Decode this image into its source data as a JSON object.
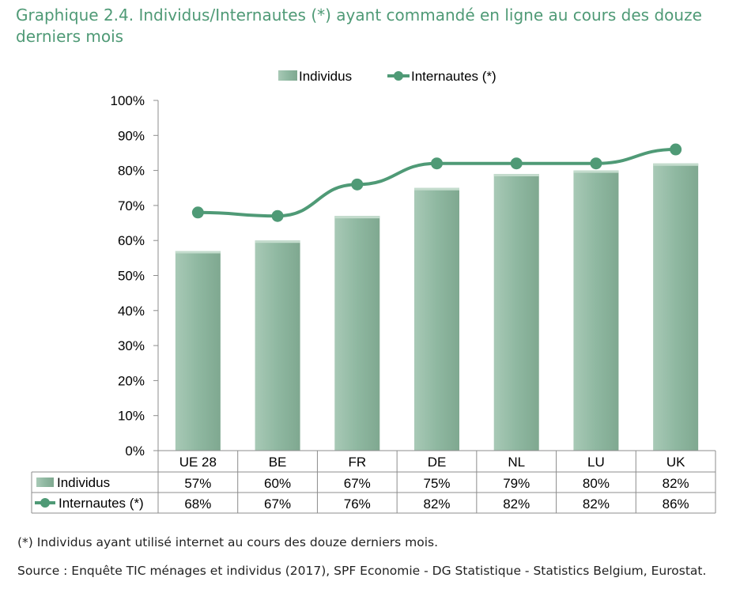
{
  "title": "Graphique 2.4. Individus/Internautes (*) ayant commandé en ligne au cours des douze derniers mois",
  "note": "(*) Individus ayant utilisé internet au cours des douze derniers mois.",
  "source": "Source : Enquête TIC ménages et individus (2017), SPF Economie - DG Statistique - Statistics Belgium, Eurostat.",
  "colors": {
    "bar": "#8fb8a1",
    "line": "#4f9a76",
    "title": "#4f9a76"
  },
  "chart_data": {
    "type": "bar",
    "categories": [
      "UE 28",
      "BE",
      "FR",
      "DE",
      "NL",
      "LU",
      "UK"
    ],
    "series": [
      {
        "name": "Individus",
        "type": "bar",
        "values": [
          57,
          60,
          67,
          75,
          79,
          80,
          82
        ],
        "labels": [
          "57%",
          "60%",
          "67%",
          "75%",
          "79%",
          "80%",
          "82%"
        ]
      },
      {
        "name": "Internautes (*)",
        "type": "line",
        "values": [
          68,
          67,
          76,
          82,
          82,
          82,
          86
        ],
        "labels": [
          "68%",
          "67%",
          "76%",
          "82%",
          "82%",
          "82%",
          "86%"
        ]
      }
    ],
    "ylim": [
      0,
      100
    ],
    "yticks": [
      "0%",
      "10%",
      "20%",
      "30%",
      "40%",
      "50%",
      "60%",
      "70%",
      "80%",
      "90%",
      "100%"
    ],
    "legend_position": "top",
    "data_table": true,
    "grid": false
  }
}
